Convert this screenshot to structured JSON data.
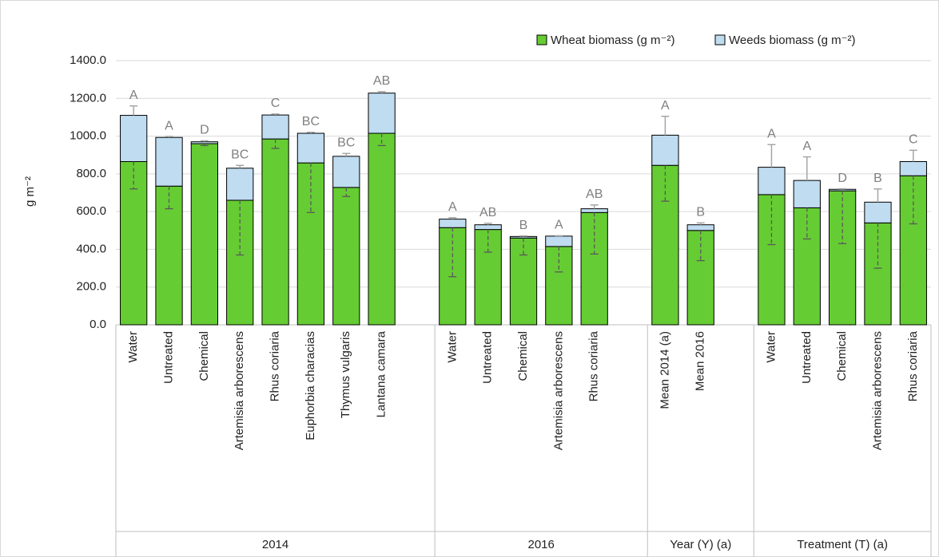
{
  "chart_data": {
    "type": "stacked_bar",
    "y_label": "g m⁻²",
    "categories": [
      "Water",
      "Untreated",
      "Chemical",
      "Artemisia arborescens",
      "Rhus coriaria",
      "Euphorbia characias",
      "Thymus vulgaris",
      "Lantana camara",
      null,
      "Water",
      "Untreated",
      "Chemical",
      "Artemisia arborescens",
      "Rhus coriaria",
      null,
      "Mean 2014 (a)",
      "Mean 2016",
      null,
      "Water",
      "Untreated",
      "Chemical",
      "Artemisia arborescens",
      "Rhus coriaria"
    ],
    "category_group": [
      "2014",
      "2014",
      "2014",
      "2014",
      "2014",
      "2014",
      "2014",
      "2014",
      "2014",
      "2016",
      "2016",
      "2016",
      "2016",
      "2016",
      "2016",
      "Year (Y) (a)",
      "Year (Y) (a)",
      "Year (Y) (a)",
      "Treatment (T) (a)",
      "Treatment (T) (a)",
      "Treatment (T) (a)",
      "Treatment (T) (a)",
      "Treatment (T) (a)"
    ],
    "series": [
      {
        "name": "Wheat biomass (g m⁻²)",
        "color": "#66cc33",
        "values": [
          865,
          735,
          960,
          660,
          985,
          858,
          728,
          1015,
          null,
          515,
          505,
          460,
          415,
          595,
          null,
          845,
          500,
          null,
          690,
          620,
          710,
          540,
          790
        ],
        "errors": [
          145,
          120,
          10,
          290,
          50,
          263,
          48,
          65,
          null,
          260,
          120,
          90,
          135,
          220,
          null,
          190,
          160,
          null,
          265,
          165,
          280,
          240,
          255
        ]
      },
      {
        "name": "Weeds biomass (g m⁻²)",
        "color": "#bfdcf0",
        "values": [
          245,
          258,
          10,
          170,
          127,
          157,
          165,
          213,
          null,
          45,
          25,
          8,
          55,
          20,
          null,
          160,
          30,
          null,
          145,
          145,
          8,
          110,
          75
        ],
        "errors": [
          50,
          5,
          5,
          15,
          5,
          5,
          15,
          8,
          null,
          8,
          8,
          3,
          2,
          20,
          null,
          100,
          10,
          null,
          120,
          125,
          3,
          70,
          60
        ]
      }
    ],
    "letters": [
      "A",
      "A",
      "D",
      "BC",
      "C",
      "BC",
      "BC",
      "AB",
      null,
      "A",
      "AB",
      "B",
      "A",
      "AB",
      null,
      "A",
      "B",
      null,
      "A",
      "A",
      "D",
      "B",
      "C"
    ],
    "ylim": [
      0,
      1400
    ],
    "yticks": [
      {
        "value": 0,
        "label": "0.0"
      },
      {
        "value": 200,
        "label": "200.0"
      },
      {
        "value": 400,
        "label": "400.0"
      },
      {
        "value": 600,
        "label": "600.0"
      },
      {
        "value": 800,
        "label": "800.0"
      },
      {
        "value": 1000,
        "label": "1000.0"
      },
      {
        "value": 1200,
        "label": "1200.0"
      },
      {
        "value": 1400,
        "label": "1400.0"
      }
    ],
    "grid": true
  }
}
